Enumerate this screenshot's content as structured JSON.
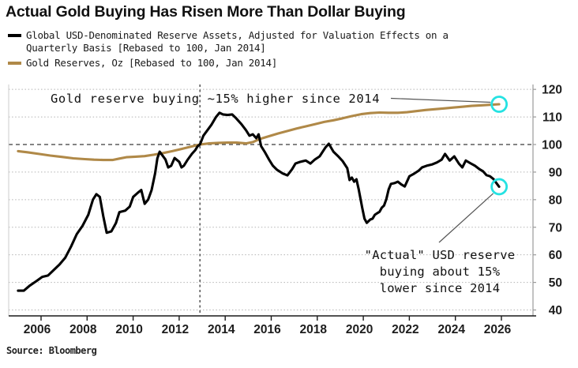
{
  "title": "Actual Gold Buying Has Risen More Than Dollar Buying",
  "source": "Source: Bloomberg",
  "colors": {
    "usd_line": "#000000",
    "gold_line": "#b08948",
    "highlight_ring": "#25e2e2",
    "grid": "#b3b3b3",
    "ref_line": "#3a3a3a",
    "leader": "#555555"
  },
  "legend": {
    "items": [
      {
        "label": "Global USD-Denominated Reserve Assets, Adjusted for Valuation Effects on a Quarterly Basis [Rebased to 100, Jan 2014]",
        "color": "#000000"
      },
      {
        "label": "Gold Reserves, Oz [Rebased to 100, Jan 2014]",
        "color": "#b08948"
      }
    ]
  },
  "annotations": {
    "gold": {
      "text": "Gold reserve buying ~15% higher since 2014",
      "points_to_value": 114.6
    },
    "usd": {
      "lines": [
        "\"Actual\" USD reserve",
        "buying about 15%",
        "lower since 2014"
      ],
      "points_to_value": 84.7
    }
  },
  "chart_data": {
    "type": "line",
    "title": "Actual Gold Buying Has Risen More Than Dollar Buying",
    "xlabel": "",
    "ylabel": "",
    "grid": true,
    "legend_position": "top-left",
    "ylim": [
      40,
      122
    ],
    "y_ticks": [
      40,
      50,
      60,
      70,
      80,
      90,
      100,
      110,
      120
    ],
    "x_ticks": [
      2006,
      2008,
      2010,
      2012,
      2014,
      2016,
      2018,
      2020,
      2022,
      2024,
      2026
    ],
    "ref_lines": {
      "horizontal_value": 100,
      "vertical_year": 2014,
      "style": "dashed"
    },
    "series": [
      {
        "name": "Global USD-Denominated Reserve Assets, Adjusted for Valuation Effects on a Quarterly Basis [Rebased to 100, Jan 2014]",
        "short_name": "usd-reserves",
        "color": "#000000",
        "end_highlight": true,
        "points": [
          [
            2006.1,
            47
          ],
          [
            2006.35,
            47
          ],
          [
            2006.6,
            48.8
          ],
          [
            2006.9,
            50.5
          ],
          [
            2007.15,
            52
          ],
          [
            2007.4,
            52.5
          ],
          [
            2007.65,
            54.5
          ],
          [
            2007.9,
            56.5
          ],
          [
            2008.15,
            59
          ],
          [
            2008.4,
            63
          ],
          [
            2008.65,
            67.5
          ],
          [
            2008.9,
            70.5
          ],
          [
            2009.15,
            74.5
          ],
          [
            2009.35,
            80
          ],
          [
            2009.5,
            82
          ],
          [
            2009.65,
            81
          ],
          [
            2009.8,
            74
          ],
          [
            2009.95,
            68
          ],
          [
            2010.15,
            68.5
          ],
          [
            2010.35,
            71.5
          ],
          [
            2010.5,
            75.5
          ],
          [
            2010.75,
            76
          ],
          [
            2010.95,
            77.5
          ],
          [
            2011.1,
            81
          ],
          [
            2011.3,
            82.5
          ],
          [
            2011.45,
            83.5
          ],
          [
            2011.6,
            78.5
          ],
          [
            2011.75,
            80
          ],
          [
            2011.9,
            83.5
          ],
          [
            2012.05,
            89.5
          ],
          [
            2012.15,
            95
          ],
          [
            2012.25,
            97.4
          ],
          [
            2012.5,
            94.6
          ],
          [
            2012.62,
            91.7
          ],
          [
            2012.75,
            92.3
          ],
          [
            2012.9,
            95.1
          ],
          [
            2013.1,
            93.7
          ],
          [
            2013.2,
            91.7
          ],
          [
            2013.3,
            92.3
          ],
          [
            2013.45,
            94.3
          ],
          [
            2013.65,
            96.6
          ],
          [
            2013.8,
            98
          ],
          [
            2013.9,
            99.4
          ],
          [
            2014,
            100
          ],
          [
            2014.15,
            103.2
          ],
          [
            2014.5,
            107.2
          ],
          [
            2014.7,
            110
          ],
          [
            2014.85,
            111.5
          ],
          [
            2015,
            110.9
          ],
          [
            2015.2,
            110.7
          ],
          [
            2015.4,
            110.9
          ],
          [
            2015.55,
            109.7
          ],
          [
            2015.8,
            107.4
          ],
          [
            2016,
            105.2
          ],
          [
            2016.15,
            103.2
          ],
          [
            2016.3,
            103.7
          ],
          [
            2016.45,
            102.3
          ],
          [
            2016.55,
            103.7
          ],
          [
            2016.66,
            99.4
          ],
          [
            2016.83,
            97.1
          ],
          [
            2017,
            94.6
          ],
          [
            2017.17,
            92.3
          ],
          [
            2017.35,
            90.8
          ],
          [
            2017.6,
            89.5
          ],
          [
            2017.8,
            88.8
          ],
          [
            2018,
            91
          ],
          [
            2018.15,
            93.1
          ],
          [
            2018.35,
            93.7
          ],
          [
            2018.6,
            94.2
          ],
          [
            2018.8,
            93.1
          ],
          [
            2019,
            94.6
          ],
          [
            2019.2,
            95.7
          ],
          [
            2019.45,
            98.9
          ],
          [
            2019.6,
            100.3
          ],
          [
            2019.8,
            97.4
          ],
          [
            2020,
            95.8
          ],
          [
            2020.2,
            94
          ],
          [
            2020.4,
            91.4
          ],
          [
            2020.5,
            87.1
          ],
          [
            2020.6,
            88
          ],
          [
            2020.7,
            86.5
          ],
          [
            2020.8,
            87.4
          ],
          [
            2020.9,
            83.7
          ],
          [
            2021.05,
            77.1
          ],
          [
            2021.15,
            73.1
          ],
          [
            2021.25,
            71.6
          ],
          [
            2021.4,
            72.8
          ],
          [
            2021.5,
            73.1
          ],
          [
            2021.6,
            74.5
          ],
          [
            2021.7,
            75.1
          ],
          [
            2021.8,
            75.6
          ],
          [
            2021.9,
            77.1
          ],
          [
            2022,
            77.9
          ],
          [
            2022.1,
            80.2
          ],
          [
            2022.2,
            83.7
          ],
          [
            2022.3,
            85.7
          ],
          [
            2022.45,
            86
          ],
          [
            2022.6,
            86.5
          ],
          [
            2022.75,
            85.5
          ],
          [
            2022.9,
            84.8
          ],
          [
            2023.1,
            88.5
          ],
          [
            2023.3,
            89.4
          ],
          [
            2023.5,
            90.5
          ],
          [
            2023.65,
            91.7
          ],
          [
            2023.85,
            92.3
          ],
          [
            2024.1,
            92.8
          ],
          [
            2024.3,
            93.5
          ],
          [
            2024.5,
            94.5
          ],
          [
            2024.65,
            96.6
          ],
          [
            2024.85,
            94.2
          ],
          [
            2025.05,
            95.7
          ],
          [
            2025.25,
            93.1
          ],
          [
            2025.4,
            91.7
          ],
          [
            2025.55,
            94.2
          ],
          [
            2025.75,
            93.2
          ],
          [
            2025.95,
            92.3
          ],
          [
            2026.15,
            91
          ],
          [
            2026.3,
            90.3
          ],
          [
            2026.45,
            88.9
          ],
          [
            2026.6,
            88.5
          ],
          [
            2026.75,
            87.5
          ],
          [
            2026.9,
            85.8
          ],
          [
            2027,
            84.7
          ]
        ]
      },
      {
        "name": "Gold Reserves, Oz [Rebased to 100, Jan 2014]",
        "short_name": "gold-reserves",
        "color": "#b08948",
        "end_highlight": true,
        "points": [
          [
            2006.1,
            97.6
          ],
          [
            2006.5,
            97.2
          ],
          [
            2007,
            96.6
          ],
          [
            2007.5,
            96
          ],
          [
            2008,
            95.5
          ],
          [
            2008.5,
            95
          ],
          [
            2009,
            94.7
          ],
          [
            2009.4,
            94.5
          ],
          [
            2009.8,
            94.4
          ],
          [
            2010.2,
            94.4
          ],
          [
            2010.5,
            94.9
          ],
          [
            2010.8,
            95.4
          ],
          [
            2011.2,
            95.6
          ],
          [
            2011.6,
            95.8
          ],
          [
            2012,
            96.3
          ],
          [
            2012.4,
            96.9
          ],
          [
            2012.8,
            97.6
          ],
          [
            2013.2,
            98.4
          ],
          [
            2013.6,
            99.2
          ],
          [
            2014,
            100
          ],
          [
            2014.4,
            100.4
          ],
          [
            2014.8,
            100.6
          ],
          [
            2015.2,
            100.7
          ],
          [
            2015.6,
            100.7
          ],
          [
            2016,
            100.4
          ],
          [
            2016.3,
            100.9
          ],
          [
            2016.6,
            102
          ],
          [
            2017,
            103
          ],
          [
            2017.4,
            104
          ],
          [
            2017.8,
            104.9
          ],
          [
            2018.2,
            105.8
          ],
          [
            2018.6,
            106.6
          ],
          [
            2019,
            107.4
          ],
          [
            2019.4,
            108.2
          ],
          [
            2019.8,
            108.8
          ],
          [
            2020.2,
            109.5
          ],
          [
            2020.6,
            110.3
          ],
          [
            2021,
            111
          ],
          [
            2021.4,
            111.4
          ],
          [
            2021.8,
            111.6
          ],
          [
            2022.2,
            111.5
          ],
          [
            2022.6,
            111.5
          ],
          [
            2023,
            111.7
          ],
          [
            2023.4,
            112.1
          ],
          [
            2023.8,
            112.5
          ],
          [
            2024.2,
            112.8
          ],
          [
            2024.6,
            113.1
          ],
          [
            2025,
            113.4
          ],
          [
            2025.4,
            113.7
          ],
          [
            2025.8,
            114
          ],
          [
            2026.2,
            114.2
          ],
          [
            2026.6,
            114.4
          ],
          [
            2027,
            114.6
          ]
        ]
      }
    ]
  }
}
